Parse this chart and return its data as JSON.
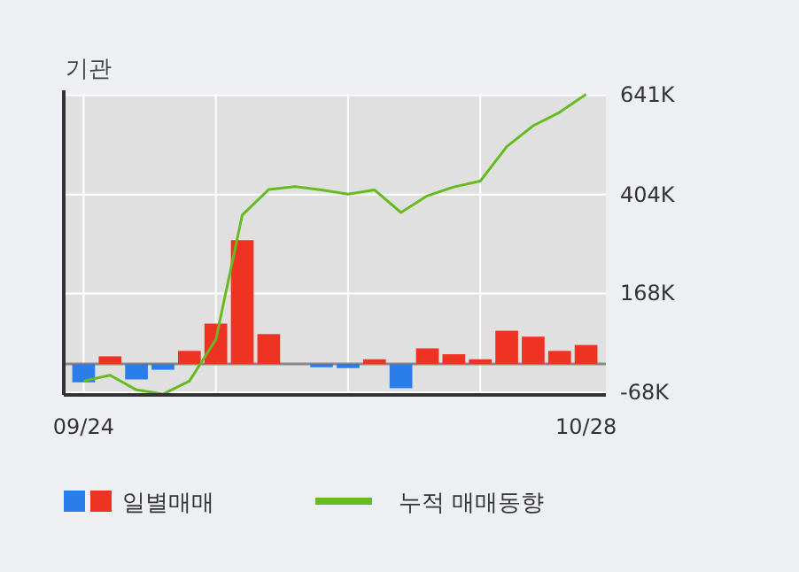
{
  "chart_data": {
    "type": "bar",
    "title": "기관",
    "categories": [
      "09/24",
      null,
      null,
      null,
      null,
      null,
      null,
      null,
      null,
      null,
      null,
      null,
      null,
      null,
      null,
      null,
      null,
      null,
      null,
      "10/28"
    ],
    "series": [
      {
        "name": "일별매매",
        "colors": [
          "#2b7de9",
          "#ee3322",
          "#2b7de9",
          "#2b7de9",
          "#ee3322",
          "#ee3322",
          "#ee3322",
          "#ee3322",
          "#ee3322",
          "#2b7de9",
          "#2b7de9",
          "#ee3322",
          "#2b7de9",
          "#ee3322",
          "#ee3322",
          "#ee3322",
          "#ee3322",
          "#ee3322",
          "#ee3322",
          "#ee3322"
        ],
        "values": [
          -44,
          18,
          -37,
          -14,
          31,
          96,
          295,
          71,
          0,
          -8,
          -10,
          11,
          -58,
          37,
          23,
          11,
          79,
          65,
          31,
          45
        ]
      },
      {
        "name": "누적 매매동향",
        "type": "line",
        "color": "#66bb22",
        "values": [
          -41,
          -27,
          -62,
          -72,
          -41,
          58,
          355,
          416,
          423,
          415,
          405,
          415,
          361,
          401,
          422,
          436,
          518,
          568,
          600,
          643
        ]
      }
    ],
    "ylim": [
      -74,
      644
    ],
    "yticks": [
      {
        "value": -68,
        "label": "-68K"
      },
      {
        "value": 168,
        "label": "168K"
      },
      {
        "value": 404,
        "label": "404K"
      },
      {
        "value": 641,
        "label": "641K"
      }
    ],
    "ref_lines": [
      {
        "axis": "y",
        "value": 0,
        "color": "#888888"
      }
    ],
    "grid": true,
    "legend": "bottom"
  }
}
